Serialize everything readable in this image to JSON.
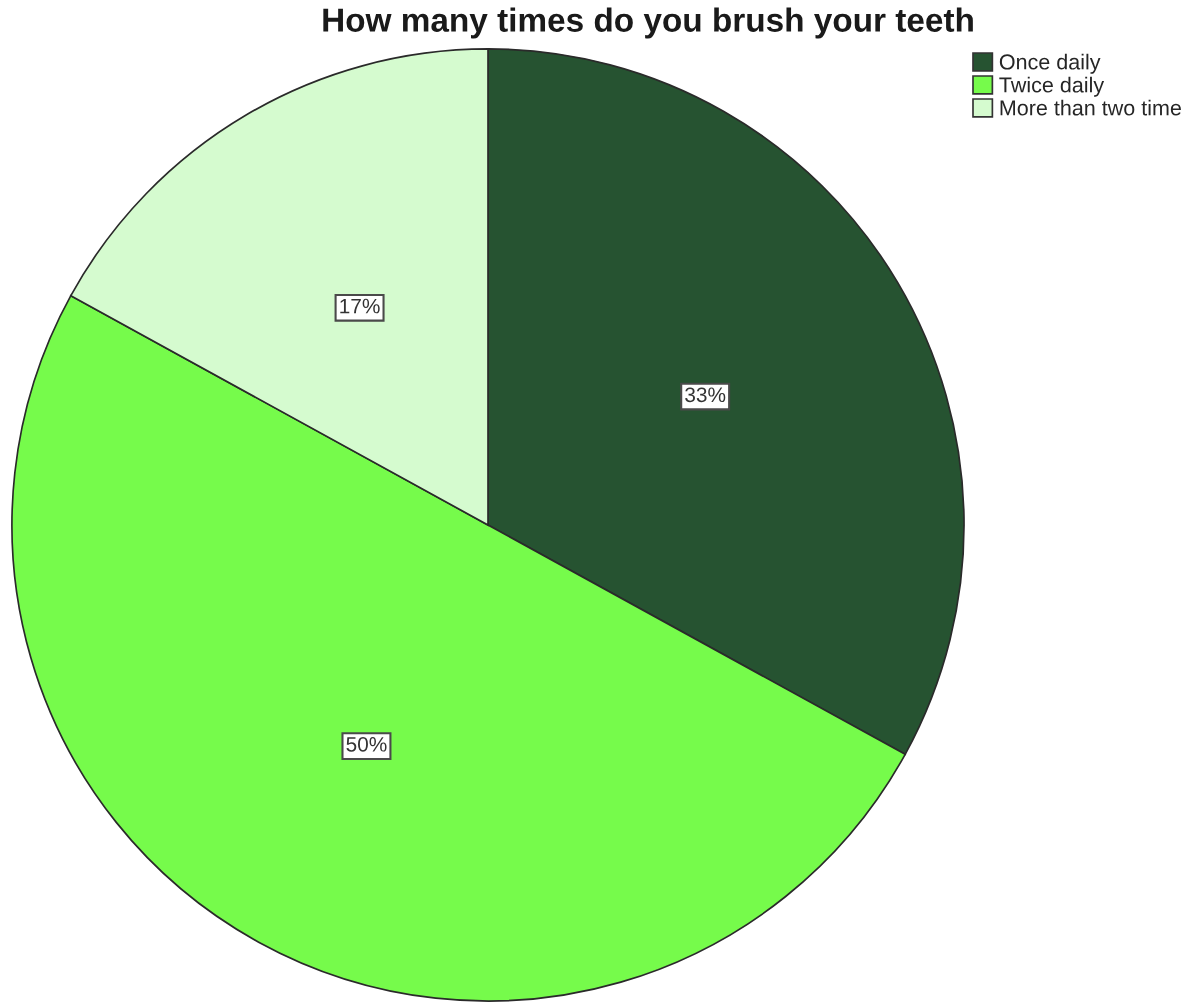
{
  "chart_data": {
    "type": "pie",
    "title": "How many times do you brush your teeth",
    "categories": [
      "Once daily",
      "Twice daily",
      "More than two time"
    ],
    "values": [
      33,
      50,
      17
    ],
    "colors": [
      "#265331",
      "#76fb4b",
      "#d5fbcf"
    ],
    "value_labels": [
      "33%",
      "50%",
      "17%"
    ],
    "legend": "top right"
  }
}
